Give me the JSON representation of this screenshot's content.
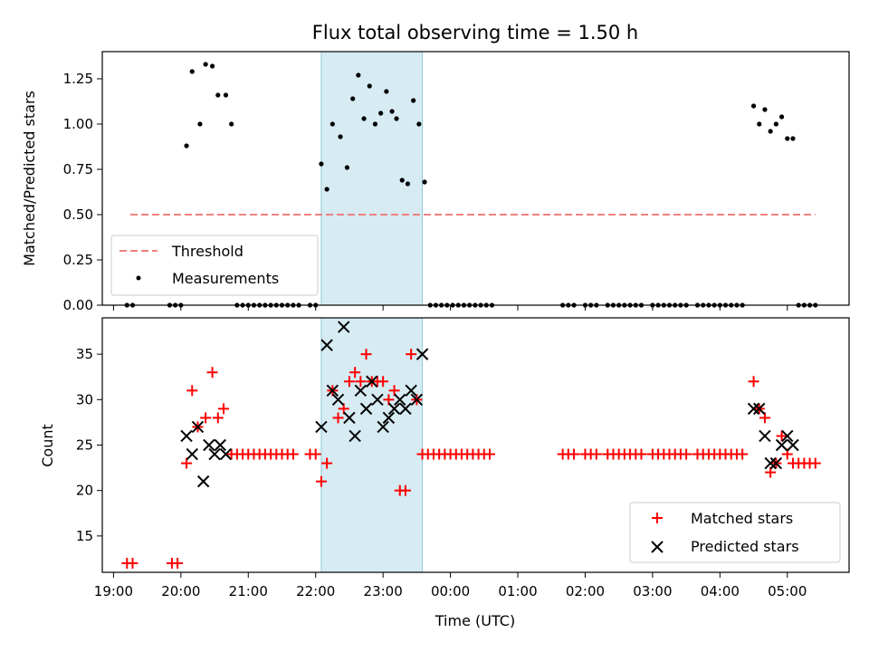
{
  "chart_data": {
    "title": "Flux total observing time = 1.50 h",
    "xlabel": "Time (UTC)",
    "x_unit": "hours since 19:00 UTC",
    "xlim": [
      "18:50",
      "05:55"
    ],
    "x_ticks": [
      "19:00",
      "20:00",
      "21:00",
      "22:00",
      "23:00",
      "00:00",
      "01:00",
      "02:00",
      "03:00",
      "04:00",
      "05:00"
    ],
    "highlight_span": {
      "start": "22:05",
      "end": "23:35",
      "color": "#add8e6"
    },
    "panels": [
      {
        "type": "scatter",
        "ylabel": "Matched/Predicted stars",
        "ylim": [
          0,
          1.4
        ],
        "y_ticks": [
          "0.00",
          "0.25",
          "0.50",
          "0.75",
          "1.00",
          "1.25"
        ],
        "threshold": {
          "label": "Threshold",
          "value": 0.5,
          "x_start": "19:15",
          "x_end": "05:25",
          "color": "#f08080"
        },
        "legend": {
          "position": "lower-left",
          "entries": [
            "Threshold",
            "Measurements"
          ]
        },
        "series": [
          {
            "name": "Measurements",
            "color": "#000000",
            "marker": "dot",
            "points": [
              [
                "19:12",
                0
              ],
              [
                "19:17",
                0
              ],
              [
                "19:50",
                0
              ],
              [
                "19:55",
                0
              ],
              [
                "20:00",
                0
              ],
              [
                "20:05",
                0.88
              ],
              [
                "20:10",
                1.29
              ],
              [
                "20:17",
                1.0
              ],
              [
                "20:22",
                1.33
              ],
              [
                "20:28",
                1.32
              ],
              [
                "20:33",
                1.16
              ],
              [
                "20:40",
                1.16
              ],
              [
                "20:45",
                1.0
              ],
              [
                "20:50",
                0
              ],
              [
                "20:55",
                0
              ],
              [
                "21:00",
                0
              ],
              [
                "21:05",
                0
              ],
              [
                "21:10",
                0
              ],
              [
                "21:15",
                0
              ],
              [
                "21:20",
                0
              ],
              [
                "21:25",
                0
              ],
              [
                "21:30",
                0
              ],
              [
                "21:35",
                0
              ],
              [
                "21:40",
                0
              ],
              [
                "21:45",
                0
              ],
              [
                "21:55",
                0
              ],
              [
                "22:00",
                0
              ],
              [
                "22:05",
                0.78
              ],
              [
                "22:10",
                0.64
              ],
              [
                "22:15",
                1.0
              ],
              [
                "22:22",
                0.93
              ],
              [
                "22:28",
                0.76
              ],
              [
                "22:33",
                1.14
              ],
              [
                "22:38",
                1.27
              ],
              [
                "22:43",
                1.03
              ],
              [
                "22:48",
                1.21
              ],
              [
                "22:53",
                1.0
              ],
              [
                "22:58",
                1.06
              ],
              [
                "23:03",
                1.18
              ],
              [
                "23:08",
                1.07
              ],
              [
                "23:12",
                1.03
              ],
              [
                "23:17",
                0.69
              ],
              [
                "23:22",
                0.67
              ],
              [
                "23:27",
                1.13
              ],
              [
                "23:32",
                1.0
              ],
              [
                "23:37",
                0.68
              ],
              [
                "23:42",
                0
              ],
              [
                "23:47",
                0
              ],
              [
                "23:52",
                0
              ],
              [
                "23:57",
                0
              ],
              [
                "00:02",
                0
              ],
              [
                "00:07",
                0
              ],
              [
                "00:12",
                0
              ],
              [
                "00:17",
                0
              ],
              [
                "00:22",
                0
              ],
              [
                "00:27",
                0
              ],
              [
                "00:32",
                0
              ],
              [
                "00:37",
                0
              ],
              [
                "01:40",
                0
              ],
              [
                "01:45",
                0
              ],
              [
                "01:50",
                0
              ],
              [
                "02:00",
                0
              ],
              [
                "02:05",
                0
              ],
              [
                "02:10",
                0
              ],
              [
                "02:20",
                0
              ],
              [
                "02:25",
                0
              ],
              [
                "02:30",
                0
              ],
              [
                "02:35",
                0
              ],
              [
                "02:40",
                0
              ],
              [
                "02:45",
                0
              ],
              [
                "02:50",
                0
              ],
              [
                "03:00",
                0
              ],
              [
                "03:05",
                0
              ],
              [
                "03:10",
                0
              ],
              [
                "03:15",
                0
              ],
              [
                "03:20",
                0
              ],
              [
                "03:25",
                0
              ],
              [
                "03:30",
                0
              ],
              [
                "03:40",
                0
              ],
              [
                "03:45",
                0
              ],
              [
                "03:50",
                0
              ],
              [
                "03:55",
                0
              ],
              [
                "04:00",
                0
              ],
              [
                "04:05",
                0
              ],
              [
                "04:10",
                0
              ],
              [
                "04:15",
                0
              ],
              [
                "04:20",
                0
              ],
              [
                "04:30",
                1.1
              ],
              [
                "04:35",
                1.0
              ],
              [
                "04:40",
                1.08
              ],
              [
                "04:45",
                0.96
              ],
              [
                "04:50",
                1.0
              ],
              [
                "04:55",
                1.04
              ],
              [
                "05:00",
                0.92
              ],
              [
                "05:05",
                0.92
              ],
              [
                "05:10",
                0
              ],
              [
                "05:15",
                0
              ],
              [
                "05:20",
                0
              ],
              [
                "05:25",
                0
              ]
            ]
          }
        ]
      },
      {
        "type": "scatter",
        "ylabel": "Count",
        "ylim": [
          11,
          39
        ],
        "y_ticks": [
          "15",
          "20",
          "25",
          "30",
          "35"
        ],
        "legend": {
          "position": "lower-right",
          "entries": [
            "Matched stars",
            "Predicted stars"
          ]
        },
        "series": [
          {
            "name": "Matched stars",
            "color": "#ff0000",
            "marker": "plus",
            "points": [
              [
                "19:12",
                12
              ],
              [
                "19:17",
                12
              ],
              [
                "19:52",
                12
              ],
              [
                "19:57",
                12
              ],
              [
                "20:05",
                23
              ],
              [
                "20:10",
                31
              ],
              [
                "20:15",
                27
              ],
              [
                "20:22",
                28
              ],
              [
                "20:28",
                33
              ],
              [
                "20:33",
                28
              ],
              [
                "20:38",
                29
              ],
              [
                "20:45",
                24
              ],
              [
                "20:50",
                24
              ],
              [
                "20:55",
                24
              ],
              [
                "21:00",
                24
              ],
              [
                "21:05",
                24
              ],
              [
                "21:10",
                24
              ],
              [
                "21:15",
                24
              ],
              [
                "21:20",
                24
              ],
              [
                "21:25",
                24
              ],
              [
                "21:30",
                24
              ],
              [
                "21:35",
                24
              ],
              [
                "21:40",
                24
              ],
              [
                "21:55",
                24
              ],
              [
                "22:00",
                24
              ],
              [
                "22:05",
                21
              ],
              [
                "22:10",
                23
              ],
              [
                "22:15",
                31
              ],
              [
                "22:20",
                28
              ],
              [
                "22:25",
                29
              ],
              [
                "22:30",
                32
              ],
              [
                "22:35",
                33
              ],
              [
                "22:40",
                32
              ],
              [
                "22:45",
                35
              ],
              [
                "22:50",
                32
              ],
              [
                "22:55",
                32
              ],
              [
                "23:00",
                32
              ],
              [
                "23:05",
                30
              ],
              [
                "23:10",
                31
              ],
              [
                "23:15",
                20
              ],
              [
                "23:20",
                20
              ],
              [
                "23:25",
                35
              ],
              [
                "23:30",
                30
              ],
              [
                "23:35",
                24
              ],
              [
                "23:40",
                24
              ],
              [
                "23:45",
                24
              ],
              [
                "23:50",
                24
              ],
              [
                "23:55",
                24
              ],
              [
                "00:00",
                24
              ],
              [
                "00:05",
                24
              ],
              [
                "00:10",
                24
              ],
              [
                "00:15",
                24
              ],
              [
                "00:20",
                24
              ],
              [
                "00:25",
                24
              ],
              [
                "00:30",
                24
              ],
              [
                "00:35",
                24
              ],
              [
                "01:40",
                24
              ],
              [
                "01:45",
                24
              ],
              [
                "01:50",
                24
              ],
              [
                "02:00",
                24
              ],
              [
                "02:05",
                24
              ],
              [
                "02:10",
                24
              ],
              [
                "02:20",
                24
              ],
              [
                "02:25",
                24
              ],
              [
                "02:30",
                24
              ],
              [
                "02:35",
                24
              ],
              [
                "02:40",
                24
              ],
              [
                "02:45",
                24
              ],
              [
                "02:50",
                24
              ],
              [
                "03:00",
                24
              ],
              [
                "03:05",
                24
              ],
              [
                "03:10",
                24
              ],
              [
                "03:15",
                24
              ],
              [
                "03:20",
                24
              ],
              [
                "03:25",
                24
              ],
              [
                "03:30",
                24
              ],
              [
                "03:40",
                24
              ],
              [
                "03:45",
                24
              ],
              [
                "03:50",
                24
              ],
              [
                "03:55",
                24
              ],
              [
                "04:00",
                24
              ],
              [
                "04:05",
                24
              ],
              [
                "04:10",
                24
              ],
              [
                "04:15",
                24
              ],
              [
                "04:20",
                24
              ],
              [
                "04:30",
                32
              ],
              [
                "04:35",
                29
              ],
              [
                "04:40",
                28
              ],
              [
                "04:45",
                22
              ],
              [
                "04:50",
                23
              ],
              [
                "04:55",
                26
              ],
              [
                "05:00",
                24
              ],
              [
                "05:05",
                23
              ],
              [
                "05:10",
                23
              ],
              [
                "05:15",
                23
              ],
              [
                "05:20",
                23
              ],
              [
                "05:25",
                23
              ]
            ]
          },
          {
            "name": "Predicted stars",
            "color": "#000000",
            "marker": "cross",
            "points": [
              [
                "20:05",
                26
              ],
              [
                "20:10",
                24
              ],
              [
                "20:15",
                27
              ],
              [
                "20:20",
                21
              ],
              [
                "20:25",
                25
              ],
              [
                "20:30",
                24
              ],
              [
                "20:35",
                25
              ],
              [
                "20:40",
                24
              ],
              [
                "22:05",
                27
              ],
              [
                "22:10",
                36
              ],
              [
                "22:15",
                31
              ],
              [
                "22:20",
                30
              ],
              [
                "22:25",
                38
              ],
              [
                "22:30",
                28
              ],
              [
                "22:35",
                26
              ],
              [
                "22:40",
                31
              ],
              [
                "22:45",
                29
              ],
              [
                "22:50",
                32
              ],
              [
                "22:55",
                30
              ],
              [
                "23:00",
                27
              ],
              [
                "23:05",
                28
              ],
              [
                "23:10",
                29
              ],
              [
                "23:15",
                30
              ],
              [
                "23:20",
                29
              ],
              [
                "23:25",
                31
              ],
              [
                "23:30",
                30
              ],
              [
                "23:35",
                35
              ],
              [
                "04:30",
                29
              ],
              [
                "04:35",
                29
              ],
              [
                "04:40",
                26
              ],
              [
                "04:45",
                23
              ],
              [
                "04:50",
                23
              ],
              [
                "04:55",
                25
              ],
              [
                "05:00",
                26
              ],
              [
                "05:05",
                25
              ]
            ]
          }
        ]
      }
    ]
  }
}
